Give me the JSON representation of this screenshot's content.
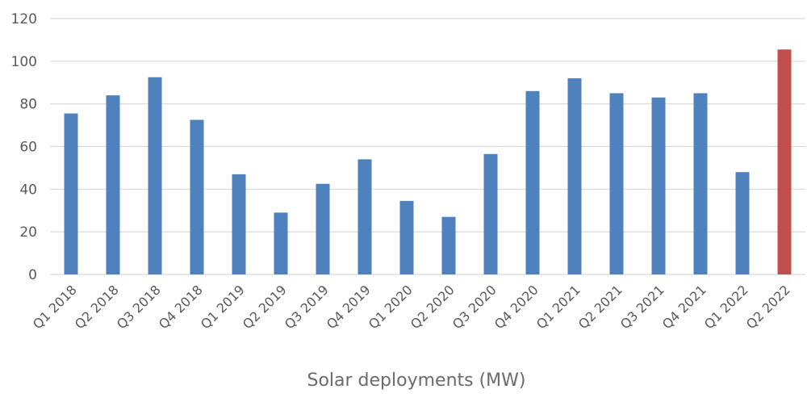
{
  "chart_data": {
    "type": "bar",
    "xlabel": "Solar deployments (MW)",
    "ylabel": "",
    "ylim": [
      0,
      120
    ],
    "yticks": [
      0,
      20,
      40,
      60,
      80,
      100,
      120
    ],
    "grid": true,
    "categories": [
      "Q1 2018",
      "Q2 2018",
      "Q3 2018",
      "Q4 2018",
      "Q1 2019",
      "Q2 2019",
      "Q3 2019",
      "Q4 2019",
      "Q1 2020",
      "Q2 2020",
      "Q3 2020",
      "Q4 2020",
      "Q1 2021",
      "Q2 2021",
      "Q3 2021",
      "Q4 2021",
      "Q1 2022",
      "Q2 2022"
    ],
    "values": [
      75.5,
      84,
      92.5,
      72.5,
      47,
      29,
      42.5,
      54,
      34.5,
      27,
      56.5,
      86,
      92,
      85,
      83,
      85,
      48,
      105.5
    ],
    "colors": {
      "default": "#4f81bd",
      "highlight": "#c0504d"
    },
    "highlight_index": 17
  }
}
